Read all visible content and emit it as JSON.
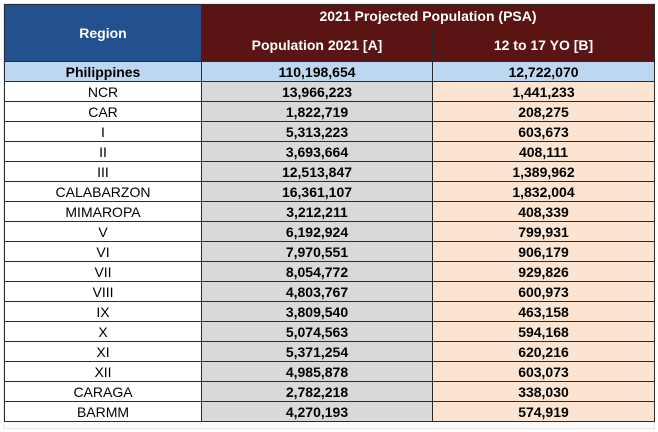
{
  "headers": {
    "region": "Region",
    "group": "2021 Projected Population (PSA)",
    "population": "Population 2021 [A]",
    "youth": "12 to 17 YO [B]"
  },
  "summary": {
    "region": "Philippines",
    "population": "110,198,654",
    "youth": "12,722,070"
  },
  "rows": [
    {
      "region": "NCR",
      "population": "13,966,223",
      "youth": "1,441,233"
    },
    {
      "region": "CAR",
      "population": "1,822,719",
      "youth": "208,275"
    },
    {
      "region": "I",
      "population": "5,313,223",
      "youth": "603,673"
    },
    {
      "region": "II",
      "population": "3,693,664",
      "youth": "408,111"
    },
    {
      "region": "III",
      "population": "12,513,847",
      "youth": "1,389,962"
    },
    {
      "region": "CALABARZON",
      "population": "16,361,107",
      "youth": "1,832,004"
    },
    {
      "region": "MIMAROPA",
      "population": "3,212,211",
      "youth": "408,339"
    },
    {
      "region": "V",
      "population": "6,192,924",
      "youth": "799,931"
    },
    {
      "region": "VI",
      "population": "7,970,551",
      "youth": "906,179"
    },
    {
      "region": "VII",
      "population": "8,054,772",
      "youth": "929,826"
    },
    {
      "region": "VIII",
      "population": "4,803,767",
      "youth": "600,973"
    },
    {
      "region": "IX",
      "population": "3,809,540",
      "youth": "463,158"
    },
    {
      "region": "X",
      "population": "5,074,563",
      "youth": "594,168"
    },
    {
      "region": "XI",
      "population": "5,371,254",
      "youth": "620,216"
    },
    {
      "region": "XII",
      "population": "4,985,878",
      "youth": "603,073"
    },
    {
      "region": "CARAGA",
      "population": "2,782,218",
      "youth": "338,030"
    },
    {
      "region": "BARMM",
      "population": "4,270,193",
      "youth": "574,919"
    }
  ],
  "colors": {
    "region_header_bg": "#23508f",
    "group_header_bg": "#5b1414",
    "summary_row_bg": "#bcd7ef",
    "population_column_bg": "#d9d9d9",
    "youth_column_bg": "#fbe4d2"
  }
}
